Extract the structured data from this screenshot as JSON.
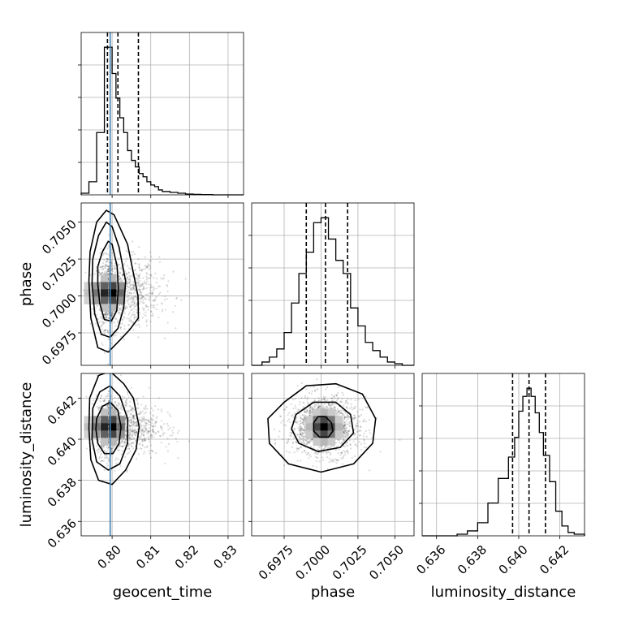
{
  "chart_data": {
    "type": "corner",
    "parameters": [
      "geocent_time",
      "phase",
      "luminosity_distance"
    ],
    "axes_labels": [
      "geocent_time",
      "phase",
      "luminosity_distance"
    ],
    "ranges": {
      "geocent_time": [
        0.792,
        0.834
      ],
      "phase": [
        0.6953,
        0.7063
      ],
      "luminosity_distance": [
        0.6353,
        0.6432
      ]
    },
    "ticks": {
      "geocent_time": {
        "values": [
          0.8,
          0.81,
          0.82,
          0.83
        ],
        "labels": [
          "0.80",
          "0.81",
          "0.82",
          "0.83"
        ]
      },
      "phase": {
        "values": [
          0.6975,
          0.7,
          0.7025,
          0.705
        ],
        "labels": [
          "0.6975",
          "0.7000",
          "0.7025",
          "0.7050"
        ]
      },
      "luminosity_distance": {
        "values": [
          0.636,
          0.638,
          0.64,
          0.642
        ],
        "labels": [
          "0.636",
          "0.638",
          "0.640",
          "0.642"
        ]
      }
    },
    "truths": {
      "geocent_time": 0.7995
    },
    "truth_color": "#4682b4",
    "quantiles": {
      "geocent_time": [
        0.7988,
        0.8015,
        0.8068
      ],
      "phase": [
        0.699,
        0.7003,
        0.7018
      ],
      "luminosity_distance": [
        0.6397,
        0.6405,
        0.6413
      ]
    },
    "histograms": {
      "geocent_time": {
        "edges": [
          0.792,
          0.794,
          0.796,
          0.798,
          0.799,
          0.8,
          0.801,
          0.802,
          0.803,
          0.804,
          0.805,
          0.806,
          0.807,
          0.808,
          0.809,
          0.81,
          0.811,
          0.812,
          0.813,
          0.815,
          0.817,
          0.819,
          0.821,
          0.823,
          0.826,
          0.834
        ],
        "counts": [
          1,
          8,
          38,
          90,
          90,
          74,
          59,
          47,
          38,
          27,
          21,
          17,
          13,
          11,
          8,
          6,
          5,
          3,
          2,
          1.5,
          1,
          0.5,
          0.3,
          0.2,
          0
        ]
      },
      "phase": {
        "edges": [
          0.6953,
          0.696,
          0.6965,
          0.697,
          0.6975,
          0.698,
          0.6985,
          0.699,
          0.6995,
          0.7,
          0.7005,
          0.701,
          0.7015,
          0.702,
          0.7025,
          0.703,
          0.7035,
          0.704,
          0.7045,
          0.705,
          0.7055,
          0.7063
        ],
        "counts": [
          0,
          2,
          5,
          10,
          20,
          38,
          56,
          69,
          87,
          90,
          77,
          64,
          56,
          35,
          24,
          14,
          9,
          5,
          2,
          1,
          0
        ]
      },
      "luminosity_distance": {
        "edges": [
          0.6353,
          0.637,
          0.6375,
          0.638,
          0.6385,
          0.639,
          0.6395,
          0.6398,
          0.64,
          0.6402,
          0.6404,
          0.6406,
          0.6408,
          0.641,
          0.6412,
          0.6415,
          0.6418,
          0.6421,
          0.6424,
          0.6427,
          0.6432
        ],
        "counts": [
          0,
          1,
          3,
          8,
          20,
          35,
          48,
          60,
          76,
          85,
          90,
          85,
          75,
          63,
          49,
          33,
          15,
          6,
          2,
          1
        ]
      }
    },
    "posteriors_2d": {
      "phase_vs_geocent_time": {
        "x": "geocent_time",
        "y": "phase",
        "center": [
          0.8001,
          0.7002
        ],
        "spread": [
          0.004,
          0.0012
        ],
        "contours": [
          [
            [
              0.7963,
              0.702
            ],
            [
              0.7975,
              0.703
            ],
            [
              0.799,
              0.7037
            ],
            [
              0.8,
              0.7035
            ],
            [
              0.8013,
              0.702
            ],
            [
              0.8016,
              0.7005
            ],
            [
              0.8012,
              0.699
            ],
            [
              0.7998,
              0.6983
            ],
            [
              0.798,
              0.6984
            ],
            [
              0.7968,
              0.6995
            ],
            [
              0.7963,
              0.7008
            ]
          ],
          [
            [
              0.795,
              0.7025
            ],
            [
              0.7965,
              0.7041
            ],
            [
              0.7985,
              0.705
            ],
            [
              0.8,
              0.7047
            ],
            [
              0.8018,
              0.7033
            ],
            [
              0.8035,
              0.701
            ],
            [
              0.803,
              0.6992
            ],
            [
              0.8015,
              0.6978
            ],
            [
              0.7995,
              0.6972
            ],
            [
              0.7972,
              0.6974
            ],
            [
              0.7955,
              0.6988
            ],
            [
              0.7948,
              0.7008
            ]
          ],
          [
            [
              0.7943,
              0.703
            ],
            [
              0.796,
              0.705
            ],
            [
              0.7985,
              0.7058
            ],
            [
              0.8005,
              0.7055
            ],
            [
              0.804,
              0.7035
            ],
            [
              0.8067,
              0.7
            ],
            [
              0.8068,
              0.6985
            ],
            [
              0.8045,
              0.6977
            ],
            [
              0.802,
              0.697
            ],
            [
              0.799,
              0.6962
            ],
            [
              0.7963,
              0.6965
            ],
            [
              0.7945,
              0.6985
            ],
            [
              0.794,
              0.701
            ]
          ]
        ]
      },
      "luminosity_distance_vs_geocent_time": {
        "x": "geocent_time",
        "y": "luminosity_distance",
        "center": [
          0.8001,
          0.6406
        ],
        "spread": [
          0.004,
          0.0007
        ],
        "contours": [
          [
            [
              0.796,
              0.641
            ],
            [
              0.7975,
              0.6416
            ],
            [
              0.7995,
              0.6418
            ],
            [
              0.8015,
              0.6414
            ],
            [
              0.8023,
              0.6406
            ],
            [
              0.8018,
              0.6398
            ],
            [
              0.8002,
              0.6393
            ],
            [
              0.798,
              0.6393
            ],
            [
              0.7963,
              0.6398
            ],
            [
              0.7958,
              0.6405
            ]
          ],
          [
            [
              0.795,
              0.6415
            ],
            [
              0.7968,
              0.6423
            ],
            [
              0.7995,
              0.6426
            ],
            [
              0.802,
              0.6421
            ],
            [
              0.804,
              0.641
            ],
            [
              0.804,
              0.6398
            ],
            [
              0.802,
              0.6388
            ],
            [
              0.799,
              0.6385
            ],
            [
              0.796,
              0.6389
            ],
            [
              0.7948,
              0.64
            ]
          ],
          [
            [
              0.7942,
              0.642
            ],
            [
              0.7965,
              0.6431
            ],
            [
              0.7995,
              0.6433
            ],
            [
              0.803,
              0.6427
            ],
            [
              0.8055,
              0.642
            ],
            [
              0.807,
              0.6406
            ],
            [
              0.8062,
              0.6395
            ],
            [
              0.8035,
              0.6385
            ],
            [
              0.8,
              0.6378
            ],
            [
              0.7965,
              0.638
            ],
            [
              0.7945,
              0.639
            ],
            [
              0.794,
              0.6405
            ]
          ]
        ]
      },
      "luminosity_distance_vs_phase": {
        "x": "phase",
        "y": "luminosity_distance",
        "center": [
          0.7002,
          0.6406
        ],
        "spread": [
          0.0012,
          0.0007
        ],
        "contours": [
          [
            [
              0.6995,
              0.6408
            ],
            [
              0.6998,
              0.6411
            ],
            [
              0.7003,
              0.6411
            ],
            [
              0.7007,
              0.6408
            ],
            [
              0.7008,
              0.6404
            ],
            [
              0.7005,
              0.6401
            ],
            [
              0.6999,
              0.6401
            ],
            [
              0.6995,
              0.6404
            ]
          ],
          [
            [
              0.6983,
              0.6412
            ],
            [
              0.6995,
              0.6418
            ],
            [
              0.701,
              0.6418
            ],
            [
              0.702,
              0.6412
            ],
            [
              0.7022,
              0.6403
            ],
            [
              0.7013,
              0.6396
            ],
            [
              0.6998,
              0.6394
            ],
            [
              0.6985,
              0.6398
            ],
            [
              0.698,
              0.6405
            ]
          ],
          [
            [
              0.6975,
              0.6418
            ],
            [
              0.699,
              0.6426
            ],
            [
              0.701,
              0.6427
            ],
            [
              0.7028,
              0.6422
            ],
            [
              0.7037,
              0.641
            ],
            [
              0.7035,
              0.6398
            ],
            [
              0.7022,
              0.6388
            ],
            [
              0.7,
              0.6384
            ],
            [
              0.6978,
              0.6388
            ],
            [
              0.6965,
              0.6398
            ],
            [
              0.6964,
              0.641
            ]
          ]
        ]
      }
    },
    "grid": true
  }
}
